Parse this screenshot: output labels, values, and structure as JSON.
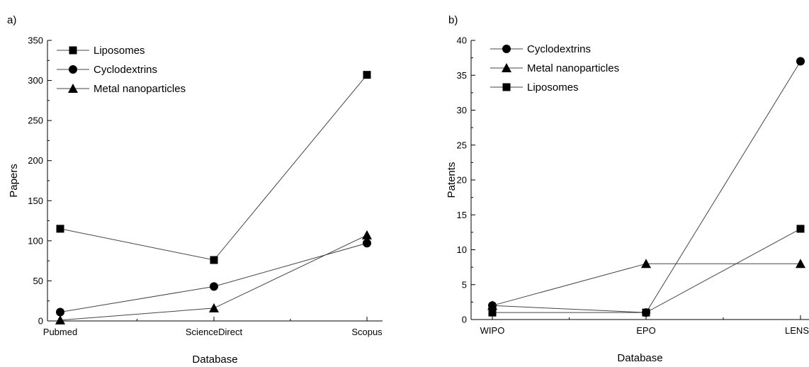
{
  "chart_data": [
    {
      "type": "line",
      "panel_label": "a)",
      "xlabel": "Database",
      "ylabel": "Papers",
      "categories": [
        "Pubmed",
        "ScienceDirect",
        "Scopus"
      ],
      "ylim": [
        0,
        350
      ],
      "yticks": [
        0,
        50,
        100,
        150,
        200,
        250,
        300,
        350
      ],
      "grid": false,
      "legend_position": "top-left",
      "series": [
        {
          "name": "Liposomes",
          "marker": "square",
          "values": [
            115,
            76,
            307
          ]
        },
        {
          "name": "Cyclodextrins",
          "marker": "circle",
          "values": [
            11,
            43,
            97
          ]
        },
        {
          "name": "Metal nanoparticles",
          "marker": "triangle",
          "values": [
            1,
            16,
            107
          ]
        }
      ]
    },
    {
      "type": "line",
      "panel_label": "b)",
      "xlabel": "Database",
      "ylabel": "Patents",
      "categories": [
        "WIPO",
        "EPO",
        "LENS"
      ],
      "ylim": [
        0,
        40
      ],
      "yticks": [
        0,
        5,
        10,
        15,
        20,
        25,
        30,
        35,
        40
      ],
      "grid": false,
      "legend_position": "top-left",
      "series": [
        {
          "name": "Cyclodextrins",
          "marker": "circle",
          "values": [
            2,
            1,
            37
          ]
        },
        {
          "name": "Metal nanoparticles",
          "marker": "triangle",
          "values": [
            2,
            8,
            8
          ]
        },
        {
          "name": "Liposomes",
          "marker": "square",
          "values": [
            1,
            1,
            13
          ]
        }
      ]
    }
  ]
}
